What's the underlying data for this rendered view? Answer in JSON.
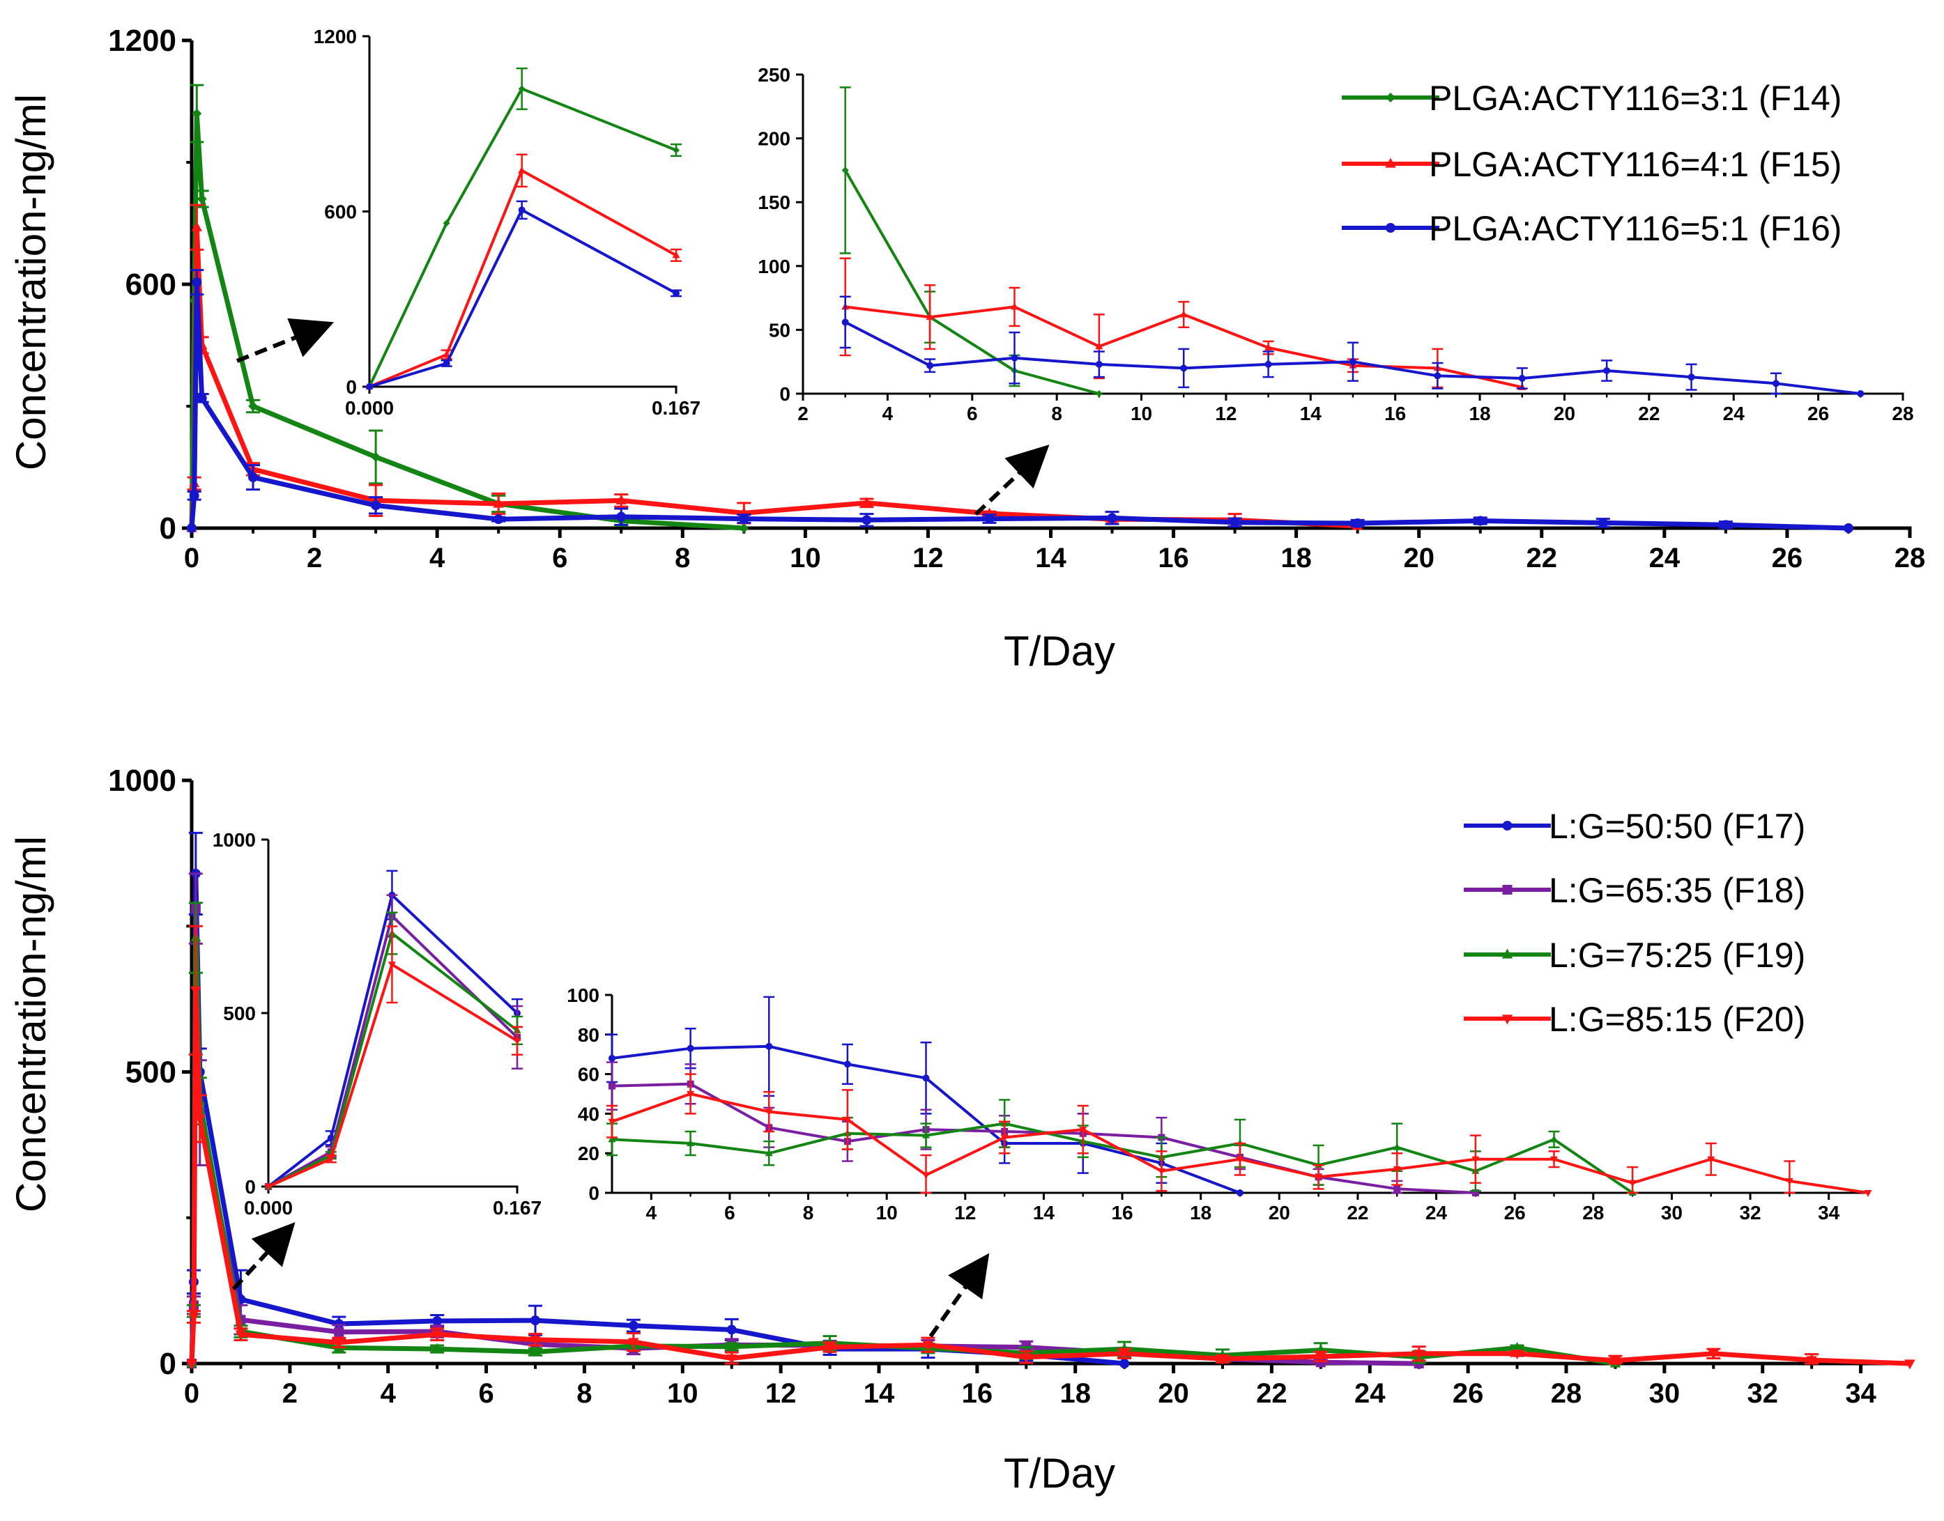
{
  "colors": {
    "green": "#138513",
    "red": "#ff1414",
    "blue": "#1616cc",
    "purple": "#7a1fa2",
    "axis": "#000000"
  },
  "chart_data": [
    {
      "id": "top",
      "type": "line",
      "ylabel": "Concentration-ng/ml",
      "xlabel": "T/Day",
      "xlim": [
        0,
        28
      ],
      "ylim": [
        0,
        1200
      ],
      "xticks": [
        "0",
        "2",
        "4",
        "6",
        "8",
        "10",
        "12",
        "14",
        "16",
        "18",
        "20",
        "22",
        "24",
        "26",
        "28"
      ],
      "yticks": [
        "0",
        "600",
        "1200"
      ],
      "legend": [
        "PLGA:ACTY116=3:1 (F14)",
        "PLGA:ACTY116=4:1 (F15)",
        "PLGA:ACTY116=5:1 (F16)"
      ],
      "series": [
        {
          "name": "PLGA:ACTY116=3:1 (F14)",
          "color": "green",
          "marker": "diamond",
          "x": [
            0,
            0.042,
            0.083,
            0.167,
            1,
            3,
            5,
            7,
            9
          ],
          "y": [
            0,
            560,
            1020,
            810,
            300,
            175,
            60,
            18,
            0
          ],
          "err": [
            0,
            0,
            70,
            20,
            15,
            65,
            20,
            12,
            0
          ]
        },
        {
          "name": "PLGA:ACTY116=4:1 (F15)",
          "color": "red",
          "marker": "triangle",
          "x": [
            0,
            0.042,
            0.083,
            0.167,
            1,
            3,
            5,
            7,
            9,
            11,
            13,
            15,
            17,
            19
          ],
          "y": [
            0,
            110,
            740,
            450,
            145,
            68,
            60,
            68,
            37,
            62,
            36,
            22,
            20,
            5
          ],
          "err": [
            0,
            15,
            55,
            20,
            15,
            38,
            25,
            15,
            25,
            10,
            5,
            5,
            15,
            0
          ]
        },
        {
          "name": "PLGA:ACTY116=5:1 (F16)",
          "color": "blue",
          "marker": "circle",
          "x": [
            0,
            0.042,
            0.083,
            0.167,
            1,
            3,
            5,
            7,
            9,
            11,
            13,
            15,
            17,
            19,
            21,
            23,
            25,
            27
          ],
          "y": [
            0,
            80,
            605,
            320,
            125,
            56,
            22,
            28,
            23,
            20,
            23,
            25,
            14,
            12,
            18,
            13,
            8,
            0
          ],
          "err": [
            0,
            10,
            30,
            10,
            30,
            20,
            5,
            20,
            10,
            15,
            10,
            15,
            10,
            8,
            8,
            10,
            8,
            0
          ]
        }
      ],
      "insets": [
        {
          "id": "top-early",
          "xlim": [
            0,
            0.167
          ],
          "ylim": [
            0,
            1200
          ],
          "xticks": [
            "0.000",
            "0.167"
          ],
          "yticks": [
            "0",
            "600",
            "1200"
          ]
        },
        {
          "id": "top-late",
          "xlim": [
            2,
            28
          ],
          "ylim": [
            0,
            250
          ],
          "xticks": [
            "2",
            "4",
            "6",
            "8",
            "10",
            "12",
            "14",
            "16",
            "18",
            "20",
            "22",
            "24",
            "26",
            "28"
          ],
          "yticks": [
            "0",
            "50",
            "100",
            "150",
            "200",
            "250"
          ]
        }
      ]
    },
    {
      "id": "bottom",
      "type": "line",
      "ylabel": "Concentration-ng/ml",
      "xlabel": "T/Day",
      "xlim": [
        0,
        35
      ],
      "ylim": [
        0,
        1000
      ],
      "xticks": [
        "0",
        "2",
        "4",
        "6",
        "8",
        "10",
        "12",
        "14",
        "16",
        "18",
        "20",
        "22",
        "24",
        "26",
        "28",
        "30",
        "32",
        "34"
      ],
      "yticks": [
        "0",
        "500",
        "1000"
      ],
      "legend": [
        "L:G=50:50 (F17)",
        "L:G=65:35 (F18)",
        "L:G=75:25 (F19)",
        "L:G=85:15 (F20)"
      ],
      "series": [
        {
          "name": "L:G=50:50 (F17)",
          "color": "blue",
          "marker": "circle",
          "x": [
            0,
            0.042,
            0.083,
            0.167,
            1,
            3,
            5,
            7,
            9,
            11,
            13,
            15,
            17,
            19
          ],
          "y": [
            0,
            140,
            840,
            500,
            110,
            68,
            73,
            74,
            65,
            58,
            25,
            25,
            15,
            0
          ],
          "err": [
            0,
            20,
            70,
            40,
            50,
            12,
            10,
            25,
            10,
            18,
            10,
            15,
            10,
            0
          ]
        },
        {
          "name": "L:G=65:35 (F18)",
          "color": "purple",
          "marker": "square",
          "x": [
            0,
            0.042,
            0.083,
            0.167,
            1,
            3,
            5,
            7,
            9,
            11,
            13,
            15,
            17,
            19,
            21,
            23,
            25
          ],
          "y": [
            0,
            100,
            780,
            430,
            75,
            54,
            55,
            33,
            26,
            32,
            31,
            30,
            28,
            18,
            8,
            2,
            0
          ],
          "err": [
            0,
            15,
            60,
            90,
            25,
            12,
            10,
            10,
            10,
            10,
            8,
            10,
            10,
            6,
            4,
            4,
            0
          ]
        },
        {
          "name": "L:G=75:25 (F19)",
          "color": "green",
          "marker": "triangle",
          "x": [
            0,
            0.042,
            0.083,
            0.167,
            1,
            3,
            5,
            7,
            9,
            11,
            13,
            15,
            17,
            19,
            21,
            23,
            25,
            27,
            29
          ],
          "y": [
            0,
            90,
            730,
            450,
            55,
            27,
            25,
            20,
            30,
            29,
            35,
            26,
            18,
            25,
            14,
            23,
            11,
            27,
            0
          ],
          "err": [
            0,
            10,
            60,
            40,
            10,
            8,
            6,
            6,
            8,
            6,
            12,
            8,
            10,
            12,
            10,
            12,
            10,
            4,
            0
          ]
        },
        {
          "name": "L:G=85:15 (F20)",
          "color": "red",
          "marker": "tri-down",
          "x": [
            0,
            0.042,
            0.083,
            0.167,
            1,
            3,
            5,
            7,
            9,
            11,
            13,
            15,
            17,
            19,
            21,
            23,
            25,
            27,
            29,
            31,
            33,
            35
          ],
          "y": [
            0,
            80,
            640,
            420,
            50,
            36,
            50,
            41,
            37,
            9,
            28,
            32,
            11,
            17,
            8,
            12,
            17,
            17,
            5,
            17,
            6,
            0
          ],
          "err": [
            0,
            10,
            110,
            40,
            10,
            8,
            10,
            10,
            15,
            10,
            8,
            12,
            10,
            8,
            6,
            8,
            12,
            4,
            8,
            8,
            10,
            0
          ]
        }
      ],
      "insets": [
        {
          "id": "bottom-early",
          "xlim": [
            0,
            0.167
          ],
          "ylim": [
            0,
            1000
          ],
          "xticks": [
            "0.000",
            "0.167"
          ],
          "yticks": [
            "0",
            "500",
            "1000"
          ]
        },
        {
          "id": "bottom-late",
          "xlim": [
            3,
            35
          ],
          "ylim": [
            0,
            100
          ],
          "xticks": [
            "4",
            "6",
            "8",
            "10",
            "12",
            "14",
            "16",
            "18",
            "20",
            "22",
            "24",
            "26",
            "28",
            "30",
            "32",
            "34"
          ],
          "yticks": [
            "0",
            "20",
            "40",
            "60",
            "80",
            "100"
          ]
        }
      ]
    }
  ]
}
